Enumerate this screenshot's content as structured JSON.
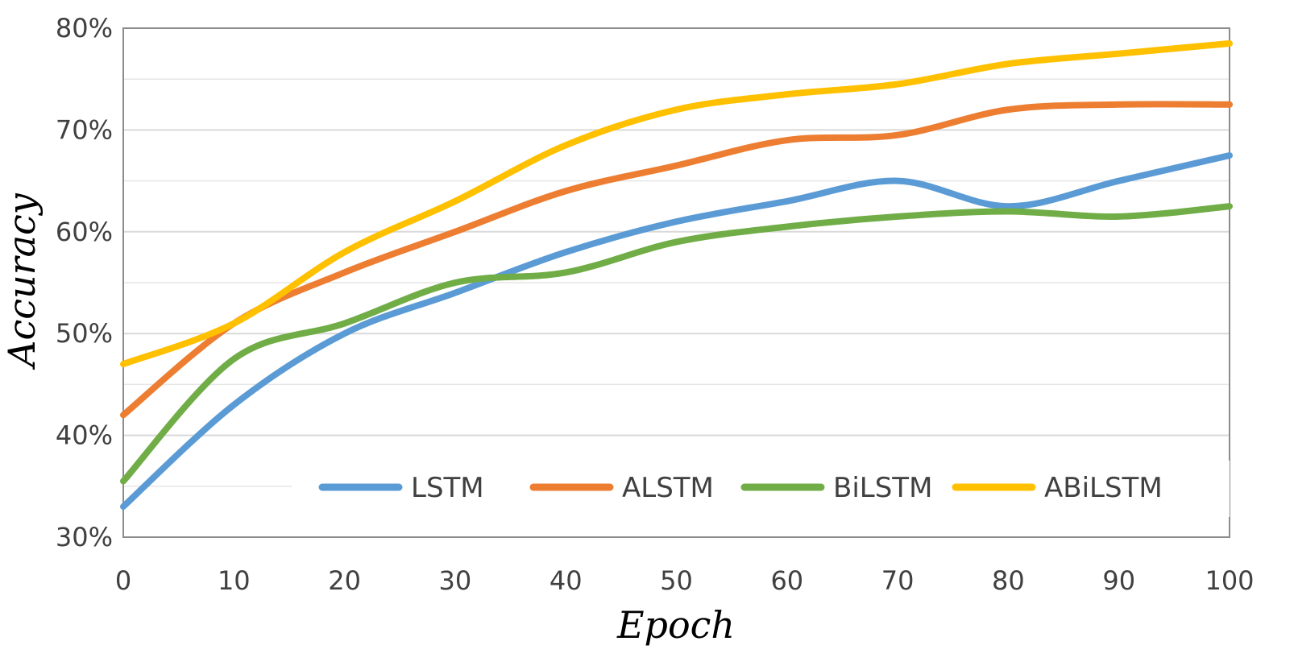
{
  "chart_data": {
    "type": "line",
    "title": "",
    "xlabel": "Epoch",
    "ylabel": "Accuracy",
    "x": [
      0,
      10,
      20,
      30,
      40,
      50,
      60,
      70,
      80,
      90,
      100
    ],
    "xlim": [
      0,
      100
    ],
    "ylim": [
      0.3,
      0.8
    ],
    "x_ticks": [
      "0",
      "10",
      "20",
      "30",
      "40",
      "50",
      "60",
      "70",
      "80",
      "90",
      "100"
    ],
    "y_ticks": [
      "30%",
      "40%",
      "50%",
      "60%",
      "70%",
      "80%"
    ],
    "y_tick_values": [
      0.3,
      0.4,
      0.5,
      0.6,
      0.7,
      0.8
    ],
    "minor_gridlines": [
      0.35,
      0.45,
      0.55,
      0.65,
      0.75
    ],
    "grid": true,
    "legend_position": "bottom-inside",
    "series": [
      {
        "name": "LSTM",
        "color": "#5b9bd5",
        "values": [
          0.33,
          0.43,
          0.5,
          0.54,
          0.58,
          0.61,
          0.63,
          0.65,
          0.625,
          0.65,
          0.675
        ]
      },
      {
        "name": "ALSTM",
        "color": "#ed7d31",
        "values": [
          0.42,
          0.51,
          0.56,
          0.6,
          0.64,
          0.665,
          0.69,
          0.695,
          0.72,
          0.725,
          0.725
        ]
      },
      {
        "name": "BiLSTM",
        "color": "#70ad47",
        "values": [
          0.355,
          0.475,
          0.51,
          0.55,
          0.56,
          0.59,
          0.605,
          0.615,
          0.62,
          0.615,
          0.625
        ]
      },
      {
        "name": "ABiLSTM",
        "color": "#ffc000",
        "values": [
          0.47,
          0.51,
          0.58,
          0.63,
          0.685,
          0.72,
          0.735,
          0.745,
          0.765,
          0.775,
          0.785
        ]
      }
    ]
  }
}
